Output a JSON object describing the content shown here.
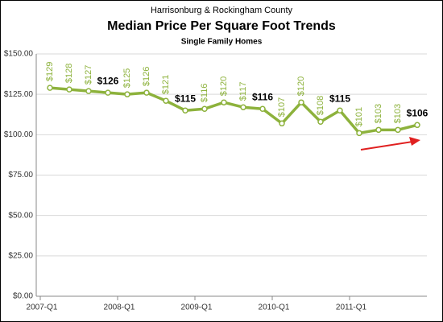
{
  "chart_data": {
    "type": "line",
    "supertitle": "Harrisonburg & Rockingham County",
    "title": "Median Price Per Square Foot Trends",
    "subtitle": "Single Family Homes",
    "categories": [
      "2007-Q1",
      null,
      null,
      null,
      "2008-Q1",
      null,
      null,
      null,
      "2009-Q1",
      null,
      null,
      null,
      "2010-Q1",
      null,
      null,
      null,
      "2011-Q1",
      null,
      null,
      null
    ],
    "values": [
      129,
      128,
      127,
      126,
      125,
      126,
      121,
      115,
      116,
      120,
      117,
      116,
      107,
      120,
      108,
      115,
      101,
      103,
      103,
      106
    ],
    "value_labels": [
      "$129",
      "$128",
      "$127",
      "$126",
      "$125",
      "$126",
      "$121",
      "$115",
      "$116",
      "$120",
      "$117",
      "$116",
      "$107",
      "$120",
      "$108",
      "$115",
      "$101",
      "$103",
      "$103",
      "$106"
    ],
    "color": "#8db23c",
    "ylim": [
      0,
      150
    ],
    "yticks": [
      {
        "value": 0,
        "label": "$0.00"
      },
      {
        "value": 25,
        "label": "$25.00"
      },
      {
        "value": 50,
        "label": "$50.00"
      },
      {
        "value": 75,
        "label": "$75.00"
      },
      {
        "value": 100,
        "label": "$100.00"
      },
      {
        "value": 125,
        "label": "$125.00"
      },
      {
        "value": 150,
        "label": "$150.00"
      }
    ],
    "grid": true
  }
}
